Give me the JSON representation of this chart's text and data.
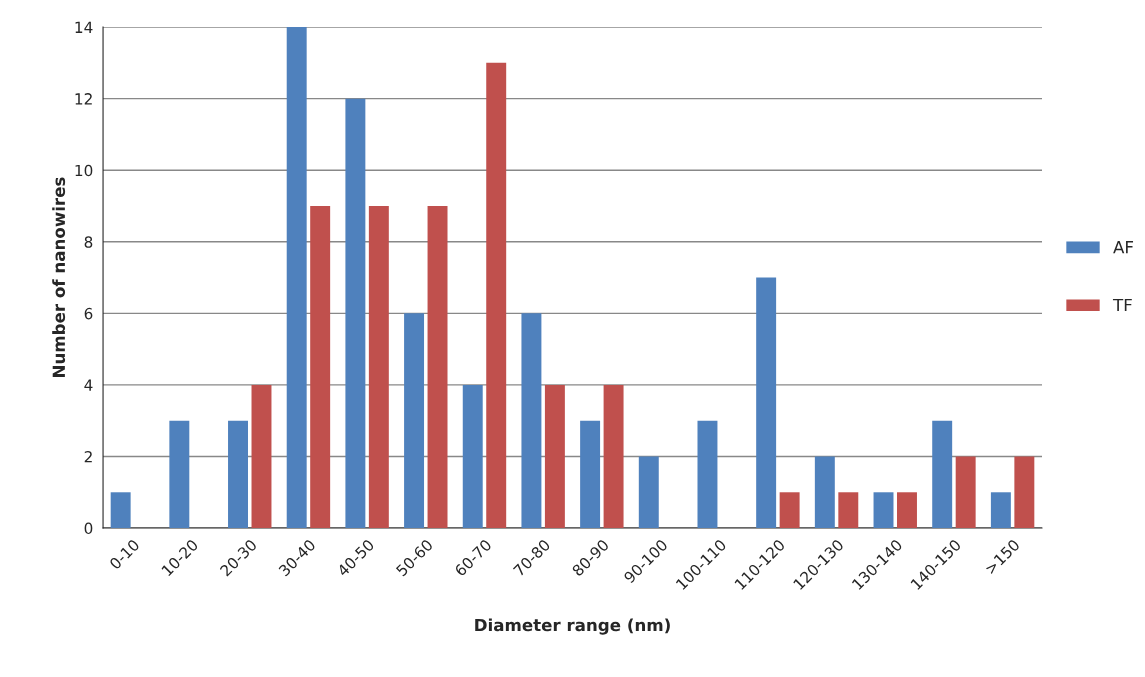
{
  "chart_data": {
    "type": "bar",
    "xlabel": "Diameter range (nm)",
    "ylabel": "Number of nanowires",
    "categories": [
      "0-10",
      "10-20",
      "20-30",
      "30-40",
      "40-50",
      "50-60",
      "60-70",
      "70-80",
      "80-90",
      "90-100",
      "100-110",
      "110-120",
      "120-130",
      "130-140",
      "140-150",
      ">150"
    ],
    "series": [
      {
        "name": "AF",
        "color": "#4f81bd",
        "values": [
          1,
          3,
          3,
          14,
          12,
          6,
          4,
          6,
          3,
          2,
          3,
          7,
          2,
          1,
          3,
          1
        ]
      },
      {
        "name": "TF",
        "color": "#c0504d",
        "values": [
          0,
          0,
          4,
          9,
          9,
          9,
          13,
          4,
          4,
          0,
          0,
          1,
          1,
          1,
          2,
          2
        ]
      }
    ],
    "ylim": [
      0,
      14
    ],
    "yticks": [
      0,
      2,
      4,
      6,
      8,
      10,
      12,
      14
    ],
    "grid": "y",
    "legend": "right"
  }
}
